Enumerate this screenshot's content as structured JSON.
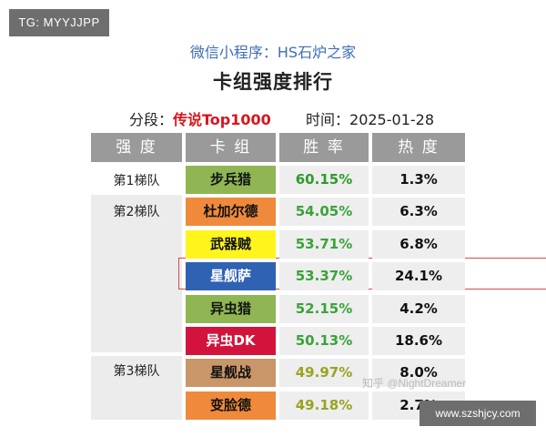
{
  "watermark_top": "TG: MYYJJPP",
  "source": "微信小程序：HS石炉之家",
  "title": "卡组强度排行",
  "meta": {
    "segment_label": "分段：",
    "segment_value": "传说Top1000",
    "time_label": "时间：",
    "time_value": "2025-01-28"
  },
  "columns": [
    "强 度",
    "卡 组",
    "胜 率",
    "热 度"
  ],
  "tiers": [
    "第1梯队",
    "第2梯队",
    "第3梯队"
  ],
  "rows": [
    {
      "deck": "步兵猎",
      "winrate": "60.15%",
      "popularity": "1.3%",
      "deck_color": "#8fb653",
      "rate_color": "#2e9b2e"
    },
    {
      "deck": "杜加尔德",
      "winrate": "54.05%",
      "popularity": "6.3%",
      "deck_color": "#ef8a3c",
      "rate_color": "#3aa33a"
    },
    {
      "deck": "武器贼",
      "winrate": "53.71%",
      "popularity": "6.8%",
      "deck_color": "#fdf51c",
      "rate_color": "#3aa33a"
    },
    {
      "deck": "星舰萨",
      "winrate": "53.37%",
      "popularity": "24.1%",
      "deck_color": "#2f62b2",
      "rate_color": "#3aa33a"
    },
    {
      "deck": "异虫猎",
      "winrate": "52.15%",
      "popularity": "4.2%",
      "deck_color": "#8fb653",
      "rate_color": "#3aa33a"
    },
    {
      "deck": "异虫DK",
      "winrate": "50.13%",
      "popularity": "18.6%",
      "deck_color": "#d2143c",
      "rate_color": "#3aa33a"
    },
    {
      "deck": "星舰战",
      "winrate": "49.97%",
      "popularity": "8.0%",
      "deck_color": "#c9966a",
      "rate_color": "#9aa321"
    },
    {
      "deck": "变脸德",
      "winrate": "49.18%",
      "popularity": "2.7%",
      "deck_color": "#ef8a3c",
      "rate_color": "#9aa321"
    }
  ],
  "watermark_zh": "知乎 @NightDreamer",
  "watermark_site": "www.szshjcy.com"
}
